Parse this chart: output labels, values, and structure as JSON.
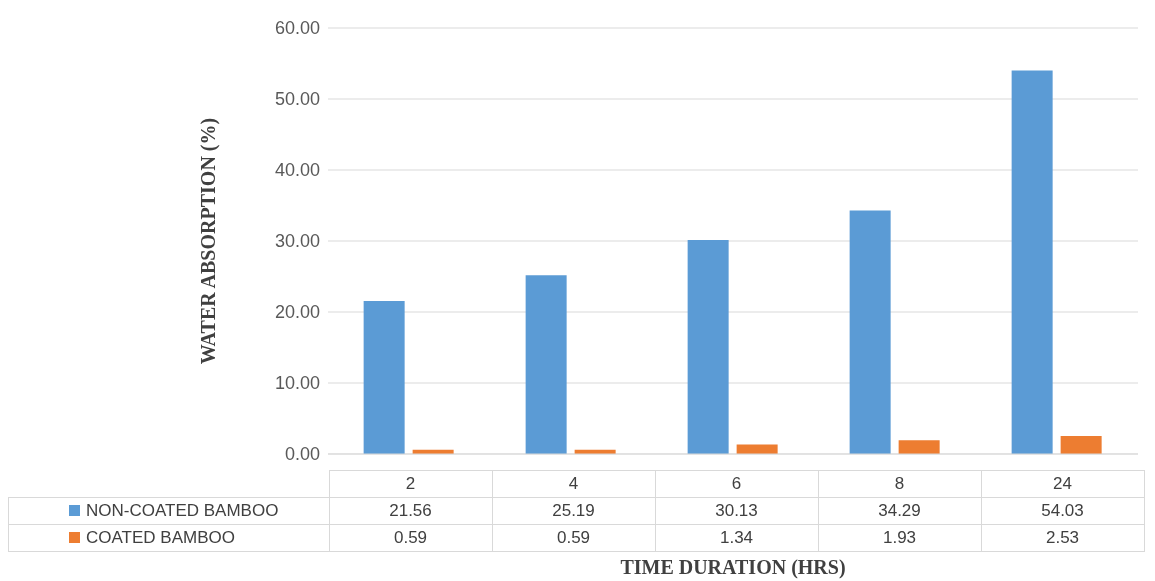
{
  "chart_data": {
    "type": "bar",
    "xlabel": "TIME DURATION (HRS)",
    "ylabel": "WATER ABSORPTION (%)",
    "categories": [
      "2",
      "4",
      "6",
      "8",
      "24"
    ],
    "series": [
      {
        "name": "NON-COATED BAMBOO",
        "color": "#5b9bd5",
        "values": [
          21.56,
          25.19,
          30.13,
          34.29,
          54.03
        ]
      },
      {
        "name": "COATED BAMBOO",
        "color": "#ed7d31",
        "values": [
          0.59,
          0.59,
          1.34,
          1.93,
          2.53
        ]
      }
    ],
    "ylim": [
      0,
      60
    ],
    "yticks": [
      {
        "value": 0,
        "label": "0.00"
      },
      {
        "value": 10,
        "label": "10.00"
      },
      {
        "value": 20,
        "label": "20.00"
      },
      {
        "value": 30,
        "label": "30.00"
      },
      {
        "value": 40,
        "label": "40.00"
      },
      {
        "value": 50,
        "label": "50.00"
      },
      {
        "value": 60,
        "label": "60.00"
      }
    ],
    "grid": "y",
    "legend": "bottom",
    "data_labels": true
  }
}
